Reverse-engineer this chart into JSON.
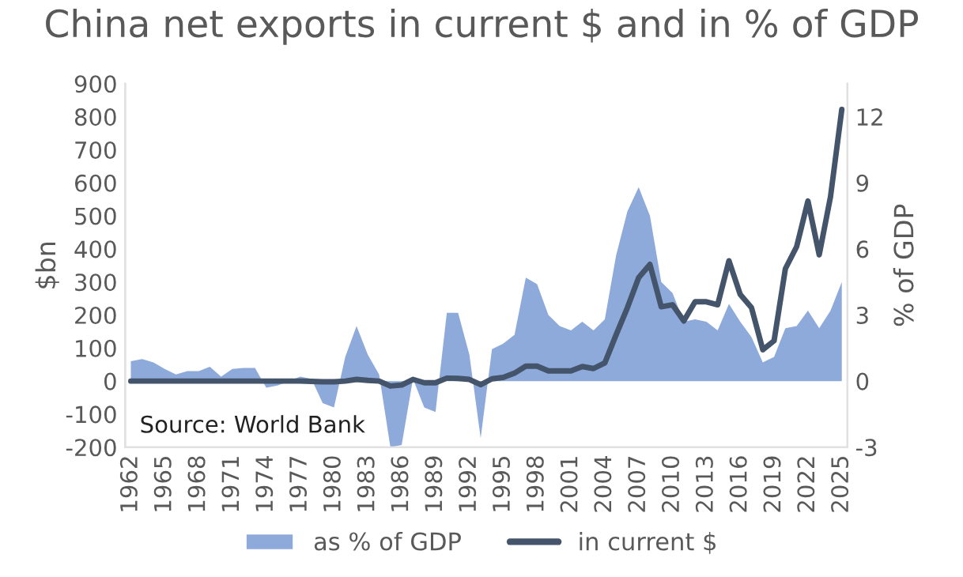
{
  "chart_data": {
    "type": "line",
    "title": "China net exports in current $ and in % of GDP",
    "ylabel": "$bn",
    "y2label": "% of GDP",
    "categories": [
      "1962",
      null,
      null,
      "1965",
      null,
      null,
      "1968",
      null,
      null,
      "1971",
      null,
      null,
      "1974",
      null,
      null,
      "1977",
      null,
      null,
      "1980",
      null,
      null,
      "1983",
      null,
      null,
      "1986",
      null,
      null,
      "1989",
      null,
      null,
      "1992",
      null,
      null,
      "1995",
      null,
      null,
      "1998",
      null,
      null,
      "2001",
      null,
      null,
      "2004",
      null,
      null,
      "2007",
      null,
      null,
      "2010",
      null,
      null,
      "2013",
      null,
      null,
      "2016",
      null,
      null,
      "2019",
      null,
      null,
      "2022",
      null,
      null,
      "2025"
    ],
    "series": [
      {
        "name": "as % of GDP",
        "type": "area",
        "axis": "y2",
        "color": "#8eaadb",
        "values": [
          0.9,
          1.0,
          0.85,
          0.55,
          0.3,
          0.45,
          0.45,
          0.65,
          0.2,
          0.55,
          0.6,
          0.6,
          -0.3,
          -0.2,
          0,
          0.2,
          0.1,
          -1.0,
          -1.2,
          1.1,
          2.5,
          1.2,
          0.3,
          -3.0,
          -2.9,
          0.1,
          -1.2,
          -1.4,
          3.1,
          3.1,
          1.2,
          -2.6,
          1.45,
          1.7,
          2.1,
          4.7,
          4.4,
          3.0,
          2.5,
          2.3,
          2.7,
          2.3,
          2.8,
          5.7,
          7.7,
          8.8,
          7.5,
          4.5,
          4.0,
          2.7,
          2.8,
          2.7,
          2.3,
          3.5,
          2.7,
          2.0,
          0.85,
          1.1,
          2.4,
          2.5,
          3.2,
          2.4,
          3.2,
          4.5
        ]
      },
      {
        "name": "in current $",
        "color": "#44546a",
        "values": [
          0,
          0,
          0,
          0,
          0,
          0,
          0,
          0,
          0,
          0,
          0,
          0,
          0,
          0,
          0,
          0,
          -1,
          -2,
          -2,
          0,
          5,
          2,
          0,
          -15,
          -12,
          5,
          -5,
          -5,
          9,
          8,
          5,
          -11,
          7,
          11,
          24,
          45,
          45,
          31,
          31,
          31,
          44,
          38,
          55,
          140,
          222,
          313,
          353,
          225,
          231,
          182,
          240,
          240,
          231,
          364,
          262,
          222,
          95,
          122,
          340,
          407,
          545,
          382,
          558,
          822
        ]
      }
    ],
    "ylim": [
      -200,
      900
    ],
    "yticks": [
      -200,
      -100,
      0,
      100,
      200,
      300,
      400,
      500,
      600,
      700,
      800,
      900
    ],
    "y2lim": [
      -3,
      13.5
    ],
    "y2ticks": [
      -3,
      0,
      3,
      6,
      9,
      12
    ],
    "legend": "bottom",
    "grid": false,
    "annotations": [
      "Source: World Bank"
    ]
  }
}
